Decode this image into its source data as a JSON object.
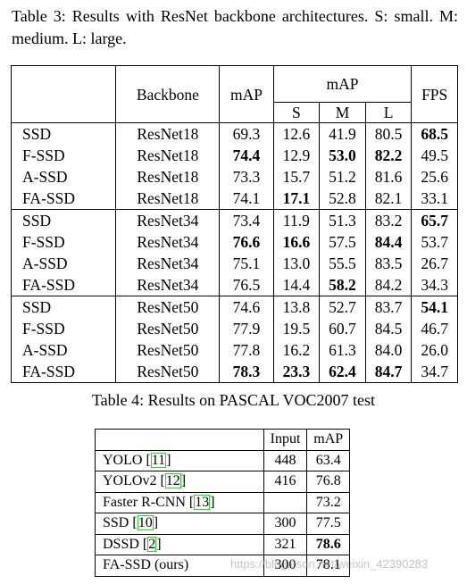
{
  "table3": {
    "caption": "Table 3: Results with ResNet backbone architectures. S: small. M: medium. L: large.",
    "headers": {
      "backbone": "Backbone",
      "map": "mAP",
      "map_group": "mAP",
      "s": "S",
      "m": "M",
      "l": "L",
      "fps": "FPS"
    },
    "rows": [
      {
        "method": "SSD",
        "backbone": "ResNet18",
        "map": "69.3",
        "s": "12.6",
        "m": "41.9",
        "l": "80.5",
        "fps": "68.5",
        "bold": [
          "fps"
        ]
      },
      {
        "method": "F-SSD",
        "backbone": "ResNet18",
        "map": "74.4",
        "s": "12.9",
        "m": "53.0",
        "l": "82.2",
        "fps": "49.5",
        "bold": [
          "map",
          "m",
          "l"
        ]
      },
      {
        "method": "A-SSD",
        "backbone": "ResNet18",
        "map": "73.3",
        "s": "15.7",
        "m": "51.2",
        "l": "81.6",
        "fps": "25.6",
        "bold": []
      },
      {
        "method": "FA-SSD",
        "backbone": "ResNet18",
        "map": "74.1",
        "s": "17.1",
        "m": "52.8",
        "l": "82.1",
        "fps": "33.1",
        "bold": [
          "s"
        ]
      },
      {
        "method": "SSD",
        "backbone": "ResNet34",
        "map": "73.4",
        "s": "11.9",
        "m": "51.3",
        "l": "83.2",
        "fps": "65.7",
        "bold": [
          "fps"
        ]
      },
      {
        "method": "F-SSD",
        "backbone": "ResNet34",
        "map": "76.6",
        "s": "16.6",
        "m": "57.5",
        "l": "84.4",
        "fps": "53.7",
        "bold": [
          "map",
          "s",
          "l"
        ]
      },
      {
        "method": "A-SSD",
        "backbone": "ResNet34",
        "map": "75.1",
        "s": "13.0",
        "m": "55.5",
        "l": "83.5",
        "fps": "26.7",
        "bold": []
      },
      {
        "method": "FA-SSD",
        "backbone": "ResNet34",
        "map": "76.5",
        "s": "14.4",
        "m": "58.2",
        "l": "84.2",
        "fps": "34.3",
        "bold": [
          "m"
        ]
      },
      {
        "method": "SSD",
        "backbone": "ResNet50",
        "map": "74.6",
        "s": "13.8",
        "m": "52.7",
        "l": "83.7",
        "fps": "54.1",
        "bold": [
          "fps"
        ]
      },
      {
        "method": "F-SSD",
        "backbone": "ResNet50",
        "map": "77.9",
        "s": "19.5",
        "m": "60.7",
        "l": "84.5",
        "fps": "46.7",
        "bold": []
      },
      {
        "method": "A-SSD",
        "backbone": "ResNet50",
        "map": "77.8",
        "s": "16.2",
        "m": "61.3",
        "l": "84.0",
        "fps": "26.0",
        "bold": []
      },
      {
        "method": "FA-SSD",
        "backbone": "ResNet50",
        "map": "78.3",
        "s": "23.3",
        "m": "62.4",
        "l": "84.7",
        "fps": "34.7",
        "bold": [
          "map",
          "s",
          "m",
          "l"
        ]
      }
    ]
  },
  "table4": {
    "caption": "Table 4: Results on PASCAL VOC2007 test",
    "headers": {
      "input": "Input",
      "map": "mAP"
    },
    "rows": [
      {
        "method": "YOLO",
        "ref": "11",
        "input": "448",
        "map": "63.4",
        "bold": false
      },
      {
        "method": "YOLOv2",
        "ref": "12",
        "input": "416",
        "map": "76.8",
        "bold": false
      },
      {
        "method": "Faster R-CNN",
        "ref": "13",
        "input": "",
        "map": "73.2",
        "bold": false
      },
      {
        "method": "SSD",
        "ref": "10",
        "input": "300",
        "map": "77.5",
        "bold": false
      },
      {
        "method": "DSSD",
        "ref": "2",
        "input": "321",
        "map": "78.6",
        "bold": true
      },
      {
        "method": "FA-SSD (ours)",
        "ref": "",
        "input": "300",
        "map": "78.1",
        "bold": false
      }
    ]
  },
  "watermark": "https://blog.csdn.net/weixin_42390283",
  "colors": {
    "citation_box": "#22dd22"
  }
}
